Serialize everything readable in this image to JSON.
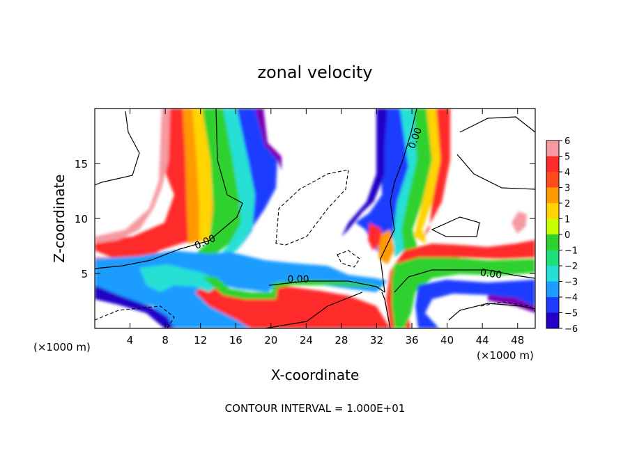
{
  "chart_data": {
    "type": "heatmap",
    "title": "zonal velocity",
    "xlabel": "X-coordinate",
    "ylabel": "Z-coordinate",
    "x_unit_label": "(×1000 m)",
    "x_unit_label_right": "(×1000 m)",
    "footer": "CONTOUR INTERVAL = 1.000E+01",
    "xlim": [
      0,
      50
    ],
    "ylim": [
      0,
      20
    ],
    "x_ticks": [
      4,
      8,
      12,
      16,
      20,
      24,
      28,
      32,
      36,
      40,
      44,
      48
    ],
    "y_ticks": [
      5,
      10,
      15
    ],
    "contour_labels": [
      "0.00",
      "0.00",
      "0.00",
      "0.00"
    ],
    "colorbar": {
      "levels": [
        6,
        5,
        4,
        3,
        2,
        1,
        0,
        -1,
        -2,
        -3,
        -4,
        -5,
        -6
      ],
      "level_labels": [
        "6",
        "5",
        "4",
        "3",
        "2",
        "1",
        "0",
        "−1",
        "−2",
        "−3",
        "−4",
        "−5",
        "−6"
      ],
      "colors": [
        "#f59aa0",
        "#ff2a2a",
        "#ff4a1e",
        "#ff9a00",
        "#ffd400",
        "#c8ff00",
        "#2ed12e",
        "#1ee07a",
        "#25e0d6",
        "#1e9cff",
        "#1e3cff",
        "#2400c8",
        "#7a00b4"
      ]
    }
  }
}
